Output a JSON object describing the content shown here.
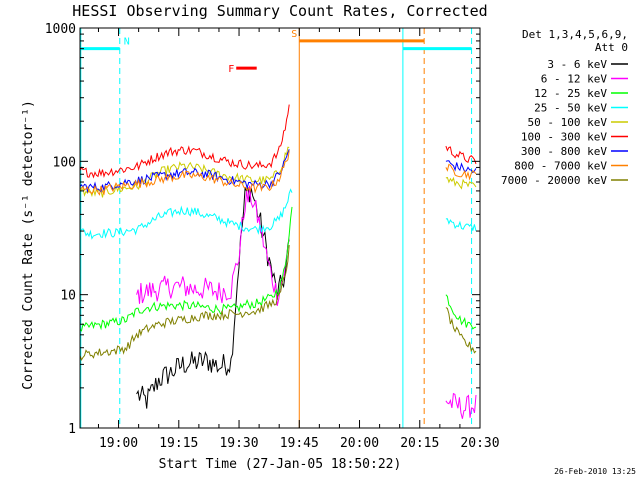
{
  "chart_data": {
    "type": "line",
    "title": "HESSI Observing Summary Count Rates, Corrected",
    "xlabel": "Start Time (27-Jan-05 18:50:22)",
    "ylabel": "Corrected Count Rate (s⁻¹ detector⁻¹)",
    "yscale": "log",
    "ylim": [
      1,
      1000
    ],
    "xlim_minutes": [
      50.4,
      150.0
    ],
    "x_ticks": [
      {
        "label": "19:00",
        "minutes": 60
      },
      {
        "label": "19:15",
        "minutes": 75
      },
      {
        "label": "19:30",
        "minutes": 90
      },
      {
        "label": "19:45",
        "minutes": 105
      },
      {
        "label": "20:00",
        "minutes": 120
      },
      {
        "label": "20:15",
        "minutes": 135
      },
      {
        "label": "20:30",
        "minutes": 150
      }
    ],
    "y_ticks": [
      {
        "label": "1",
        "value": 1
      },
      {
        "label": "10",
        "value": 10
      },
      {
        "label": "100",
        "value": 100
      },
      {
        "label": "1000",
        "value": 1000
      }
    ],
    "legend_header": [
      "Det 1,3,4,5,6,9,",
      "Att 0"
    ],
    "legend_position": "right",
    "series": [
      {
        "name": "3 - 6 keV",
        "color": "#000000",
        "points": [
          [
            50.4,
            null
          ],
          [
            57.5,
            null
          ],
          [
            64.5,
            1.8
          ],
          [
            67,
            1.6
          ],
          [
            70,
            2.3
          ],
          [
            73,
            2.6
          ],
          [
            76,
            3.0
          ],
          [
            79,
            3.1
          ],
          [
            82,
            3.2
          ],
          [
            85,
            2.9
          ],
          [
            88,
            3.1
          ],
          [
            90,
            18
          ],
          [
            91.5,
            55
          ],
          [
            93,
            62
          ],
          [
            95,
            38
          ],
          [
            97.5,
            18
          ],
          [
            99.5,
            10
          ],
          [
            101.5,
            14
          ],
          [
            102.5,
            25
          ]
        ]
      },
      {
        "name": "6 - 12 keV",
        "color": "#ff00ff",
        "points": [
          [
            50.4,
            null
          ],
          [
            57.5,
            null
          ],
          [
            64.5,
            10
          ],
          [
            67,
            10.5
          ],
          [
            70,
            11
          ],
          [
            73,
            11.5
          ],
          [
            76,
            11.5
          ],
          [
            79,
            11
          ],
          [
            82,
            11
          ],
          [
            85,
            10.5
          ],
          [
            88,
            11
          ],
          [
            90,
            20
          ],
          [
            91.5,
            50
          ],
          [
            93,
            55
          ],
          [
            95,
            35
          ],
          [
            97.5,
            16
          ],
          [
            99.5,
            10
          ],
          [
            101.5,
            15
          ],
          [
            102.5,
            28
          ],
          [
            141.5,
            1.6
          ],
          [
            146,
            1.4
          ],
          [
            149,
            1.5
          ]
        ]
      },
      {
        "name": "12 - 25 keV",
        "color": "#00ff00",
        "points": [
          [
            50.4,
            5.5
          ],
          [
            53,
            5.8
          ],
          [
            56,
            6
          ],
          [
            59,
            6.2
          ],
          [
            62,
            6.5
          ],
          [
            64.5,
            7.5
          ],
          [
            67,
            8
          ],
          [
            70,
            8.2
          ],
          [
            73,
            8.3
          ],
          [
            76,
            8.3
          ],
          [
            79,
            8.2
          ],
          [
            82,
            8
          ],
          [
            85,
            7.8
          ],
          [
            88,
            7.8
          ],
          [
            90,
            8
          ],
          [
            92,
            8.5
          ],
          [
            94,
            8.5
          ],
          [
            96,
            9
          ],
          [
            98,
            9.5
          ],
          [
            100,
            11
          ],
          [
            101.5,
            16
          ],
          [
            102.5,
            30
          ],
          [
            103.2,
            45
          ],
          [
            141.5,
            10
          ],
          [
            143,
            8
          ],
          [
            145,
            6.5
          ],
          [
            147,
            6
          ],
          [
            149,
            6
          ]
        ]
      },
      {
        "name": "25 - 50 keV",
        "color": "#00ffff",
        "points": [
          [
            50.4,
            30
          ],
          [
            53,
            28.5
          ],
          [
            56,
            29
          ],
          [
            59,
            29
          ],
          [
            62,
            30
          ],
          [
            65,
            31
          ],
          [
            67,
            34
          ],
          [
            70,
            38
          ],
          [
            73,
            41
          ],
          [
            76,
            43
          ],
          [
            79,
            42
          ],
          [
            82,
            39
          ],
          [
            85,
            37
          ],
          [
            88,
            34
          ],
          [
            90,
            33
          ],
          [
            92,
            32
          ],
          [
            94,
            31
          ],
          [
            96,
            32
          ],
          [
            98,
            33
          ],
          [
            100,
            37
          ],
          [
            101.5,
            45
          ],
          [
            102.5,
            55
          ],
          [
            103.2,
            60
          ],
          [
            141.5,
            37
          ],
          [
            143,
            35
          ],
          [
            145,
            33
          ],
          [
            147,
            32
          ],
          [
            149,
            32
          ]
        ]
      },
      {
        "name": "50 - 100 keV",
        "color": "#cccc00",
        "points": [
          [
            50.4,
            60
          ],
          [
            53,
            58
          ],
          [
            56,
            58
          ],
          [
            59,
            61
          ],
          [
            62,
            63
          ],
          [
            65,
            66
          ],
          [
            67,
            72
          ],
          [
            70,
            82
          ],
          [
            73,
            88
          ],
          [
            76,
            92
          ],
          [
            79,
            90
          ],
          [
            82,
            85
          ],
          [
            85,
            80
          ],
          [
            88,
            76
          ],
          [
            90,
            75
          ],
          [
            92,
            73
          ],
          [
            94,
            72
          ],
          [
            96,
            72
          ],
          [
            98,
            73
          ],
          [
            100,
            85
          ],
          [
            101.5,
            110
          ],
          [
            102.5,
            130
          ],
          [
            141.5,
            75
          ],
          [
            143,
            70
          ],
          [
            145,
            68
          ],
          [
            147,
            66
          ],
          [
            149,
            64
          ]
        ]
      },
      {
        "name": "100 - 300 keV",
        "color": "#ff0000",
        "points": [
          [
            50.4,
            85
          ],
          [
            53,
            82
          ],
          [
            56,
            82
          ],
          [
            59,
            85
          ],
          [
            62,
            88
          ],
          [
            65,
            92
          ],
          [
            67,
            100
          ],
          [
            70,
            110
          ],
          [
            73,
            118
          ],
          [
            76,
            122
          ],
          [
            79,
            120
          ],
          [
            82,
            113
          ],
          [
            85,
            105
          ],
          [
            88,
            98
          ],
          [
            90,
            96
          ],
          [
            92,
            94
          ],
          [
            94,
            92
          ],
          [
            96,
            93
          ],
          [
            98,
            98
          ],
          [
            100,
            120
          ],
          [
            101.5,
            180
          ],
          [
            102.5,
            260
          ],
          [
            141.5,
            130
          ],
          [
            143,
            118
          ],
          [
            145,
            110
          ],
          [
            147,
            104
          ],
          [
            149,
            100
          ]
        ]
      },
      {
        "name": "300 - 800 keV",
        "color": "#0000ff",
        "points": [
          [
            50.4,
            65
          ],
          [
            53,
            64
          ],
          [
            56,
            64
          ],
          [
            59,
            67
          ],
          [
            62,
            70
          ],
          [
            65,
            72
          ],
          [
            67,
            74
          ],
          [
            70,
            77
          ],
          [
            73,
            80
          ],
          [
            76,
            82
          ],
          [
            79,
            82
          ],
          [
            82,
            80
          ],
          [
            85,
            76
          ],
          [
            88,
            72
          ],
          [
            90,
            70
          ],
          [
            92,
            68
          ],
          [
            94,
            67
          ],
          [
            96,
            67
          ],
          [
            98,
            69
          ],
          [
            100,
            80
          ],
          [
            101.5,
            100
          ],
          [
            102.5,
            125
          ],
          [
            141.5,
            100
          ],
          [
            143,
            94
          ],
          [
            145,
            90
          ],
          [
            147,
            86
          ],
          [
            149,
            84
          ]
        ]
      },
      {
        "name": "800 - 7000 keV",
        "color": "#ff8000",
        "points": [
          [
            50.4,
            62
          ],
          [
            53,
            61
          ],
          [
            56,
            61
          ],
          [
            59,
            64
          ],
          [
            62,
            66
          ],
          [
            65,
            68
          ],
          [
            67,
            70
          ],
          [
            70,
            73
          ],
          [
            73,
            76
          ],
          [
            76,
            78
          ],
          [
            79,
            78
          ],
          [
            82,
            76
          ],
          [
            85,
            72
          ],
          [
            88,
            68
          ],
          [
            90,
            66
          ],
          [
            92,
            64
          ],
          [
            94,
            63
          ],
          [
            96,
            63
          ],
          [
            98,
            65
          ],
          [
            100,
            75
          ],
          [
            101.5,
            95
          ],
          [
            102.5,
            120
          ],
          [
            141.5,
            90
          ],
          [
            143,
            86
          ],
          [
            145,
            82
          ],
          [
            147,
            80
          ],
          [
            149,
            79
          ]
        ]
      },
      {
        "name": "7000 - 20000 keV",
        "color": "#808000",
        "points": [
          [
            50.4,
            3.5
          ],
          [
            53,
            3.6
          ],
          [
            56,
            3.7
          ],
          [
            59,
            3.8
          ],
          [
            62,
            4
          ],
          [
            64.5,
            5
          ],
          [
            67,
            5.5
          ],
          [
            70,
            6
          ],
          [
            73,
            6.3
          ],
          [
            76,
            6.5
          ],
          [
            79,
            6.8
          ],
          [
            82,
            7
          ],
          [
            85,
            7
          ],
          [
            88,
            7.2
          ],
          [
            90,
            7.2
          ],
          [
            92,
            7.5
          ],
          [
            94,
            7.5
          ],
          [
            96,
            8
          ],
          [
            98,
            8.5
          ],
          [
            100,
            9.5
          ],
          [
            101.5,
            14
          ],
          [
            102.5,
            22
          ],
          [
            141.5,
            8
          ],
          [
            143,
            6
          ],
          [
            145,
            4.8
          ],
          [
            147,
            4.2
          ],
          [
            149,
            3.8
          ]
        ]
      }
    ],
    "flag_bars": [
      {
        "label": "N",
        "color": "#00ffff",
        "start": 50.4,
        "end": 60.3,
        "level": 700
      },
      {
        "label": "F",
        "color": "#ff0000",
        "start": 89.3,
        "end": 94.4,
        "level": 500
      },
      {
        "label": "S",
        "color": "#ff8000",
        "start": 105.0,
        "end": 136.1,
        "level": 800
      },
      {
        "label": "",
        "color": "#00ffff",
        "start": 130.8,
        "end": 147.9,
        "level": 700
      }
    ],
    "vertical_lines": [
      {
        "minutes": 50.6,
        "color": "#00ffff",
        "style": "solid"
      },
      {
        "minutes": 60.3,
        "color": "#00ffff",
        "style": "dashed"
      },
      {
        "minutes": 105.0,
        "color": "#ff8000",
        "style": "solid"
      },
      {
        "minutes": 130.8,
        "color": "#00ffff",
        "style": "solid"
      },
      {
        "minutes": 136.1,
        "color": "#ff8000",
        "style": "dashed"
      },
      {
        "minutes": 147.9,
        "color": "#00ffff",
        "style": "dashed"
      }
    ],
    "footer_stamp": "26-Feb-2010 13:25"
  }
}
